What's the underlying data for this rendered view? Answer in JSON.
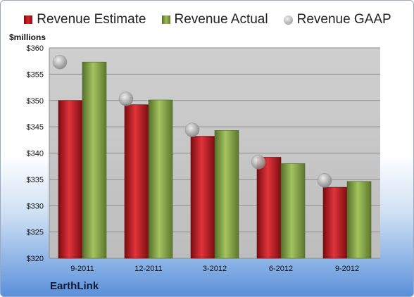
{
  "legend": {
    "estimate": "Revenue Estimate",
    "actual": "Revenue Actual",
    "gaap": "Revenue GAAP"
  },
  "unit_label": "$millions",
  "company": "EarthLink",
  "colors": {
    "estimate": "#d8232a",
    "actual": "#9cbc59",
    "gaap": "#b8b8b8",
    "plot_background": "#c8c8c8"
  },
  "chart_data": {
    "type": "bar",
    "categories": [
      "9-2011",
      "12-2011",
      "3-2012",
      "6-2012",
      "9-2012"
    ],
    "series": [
      {
        "name": "Revenue Estimate",
        "values": [
          350.0,
          349.2,
          343.2,
          339.2,
          333.5
        ]
      },
      {
        "name": "Revenue Actual",
        "values": [
          357.3,
          350.1,
          344.3,
          338.0,
          334.6
        ]
      },
      {
        "name": "Revenue GAAP",
        "values": [
          357.3,
          350.3,
          344.4,
          338.3,
          334.8
        ]
      }
    ],
    "ylim": [
      320,
      360
    ],
    "yticks": [
      "$320",
      "$325",
      "$330",
      "$335",
      "$340",
      "$345",
      "$350",
      "$355",
      "$360"
    ],
    "ylabel": "$millions",
    "grid": true,
    "legend_position": "top"
  }
}
